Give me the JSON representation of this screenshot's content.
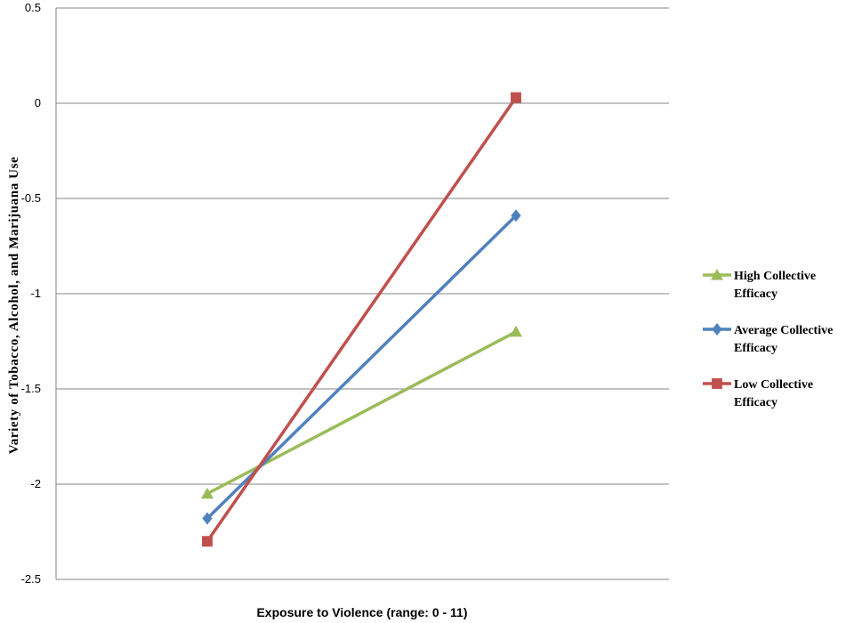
{
  "chart_data": {
    "type": "line",
    "title": "",
    "xlabel": "Exposure to Violence (range: 0 - 11)",
    "ylabel": "Variety of Tobacco, Alcohol, and Marijuana Use",
    "ylim": [
      -2.5,
      0.5
    ],
    "yticks": [
      "0.5",
      "0",
      "-0.5",
      "-1",
      "-1.5",
      "-2",
      "-2.5"
    ],
    "ytick_values": [
      0.5,
      0,
      -0.5,
      -1,
      -1.5,
      -2,
      -2.5
    ],
    "grid": true,
    "legend_position": "right",
    "x_points": 2,
    "series": [
      {
        "name": "High Collective Efficacy",
        "name_lines": [
          "High Collective",
          "Efficacy"
        ],
        "values": [
          -2.05,
          -1.2
        ],
        "color": "#9BBB59",
        "marker": "triangle"
      },
      {
        "name": "Average Collective Efficacy",
        "name_lines": [
          "Average Collective",
          "Efficacy"
        ],
        "values": [
          -2.18,
          -0.59
        ],
        "color": "#4F81BD",
        "marker": "diamond"
      },
      {
        "name": "Low Collective Efficacy",
        "name_lines": [
          "Low Collective",
          "Efficacy"
        ],
        "values": [
          -2.3,
          0.03
        ],
        "color": "#C0504D",
        "marker": "square"
      }
    ]
  }
}
